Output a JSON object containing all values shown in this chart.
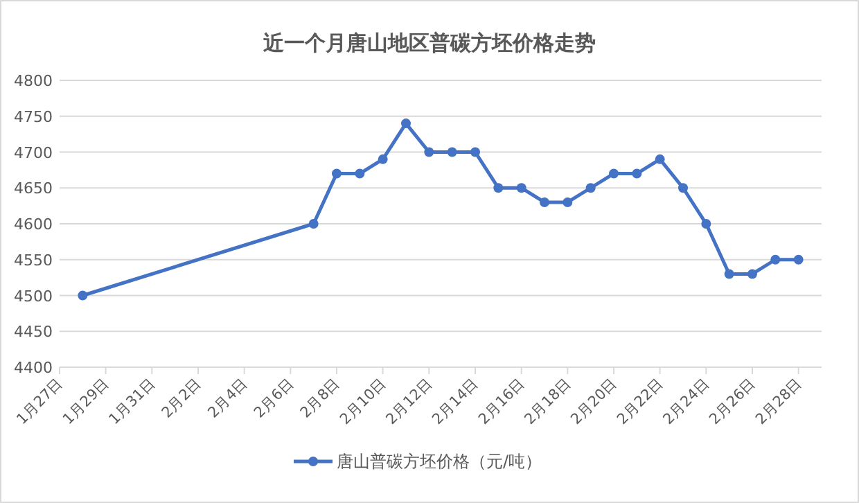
{
  "chart_data": {
    "type": "line",
    "title": "近一个月唐山地区普碳方坯价格走势",
    "x": [
      "--01-28",
      "--02-07",
      "--02-08",
      "--02-09",
      "--02-10",
      "--02-11",
      "--02-12",
      "--02-13",
      "--02-14",
      "--02-15",
      "--02-16",
      "--02-17",
      "--02-18",
      "--02-19",
      "--02-20",
      "--02-21",
      "--02-22",
      "--02-23",
      "--02-24",
      "--02-25",
      "--02-26",
      "--02-27",
      "--02-28"
    ],
    "series": [
      {
        "name": "唐山普碳方坯价格（元/吨）",
        "color": "#4472c4",
        "values": [
          4500,
          4600,
          4670,
          4670,
          4690,
          4740,
          4700,
          4700,
          4700,
          4650,
          4650,
          4630,
          4630,
          4650,
          4670,
          4670,
          4690,
          4650,
          4600,
          4530,
          4530,
          4550,
          4550
        ]
      }
    ],
    "xlim": [
      "--01-27",
      "--03-01"
    ],
    "xticks": [
      {
        "value": "--01-27",
        "label": "1月27日"
      },
      {
        "value": "--01-29",
        "label": "1月29日"
      },
      {
        "value": "--01-31",
        "label": "1月31日"
      },
      {
        "value": "--02-02",
        "label": "2月2日"
      },
      {
        "value": "--02-04",
        "label": "2月4日"
      },
      {
        "value": "--02-06",
        "label": "2月6日"
      },
      {
        "value": "--02-08",
        "label": "2月8日"
      },
      {
        "value": "--02-10",
        "label": "2月10日"
      },
      {
        "value": "--02-12",
        "label": "2月12日"
      },
      {
        "value": "--02-14",
        "label": "2月14日"
      },
      {
        "value": "--02-16",
        "label": "2月16日"
      },
      {
        "value": "--02-18",
        "label": "2月18日"
      },
      {
        "value": "--02-20",
        "label": "2月20日"
      },
      {
        "value": "--02-22",
        "label": "2月22日"
      },
      {
        "value": "--02-24",
        "label": "2月24日"
      },
      {
        "value": "--02-26",
        "label": "2月26日"
      },
      {
        "value": "--02-28",
        "label": "2月28日"
      }
    ],
    "ylim": [
      4400,
      4800
    ],
    "yticks": [
      4400,
      4450,
      4500,
      4550,
      4600,
      4650,
      4700,
      4750,
      4800
    ],
    "grid": "y",
    "legend": "bottom",
    "marker": "circle",
    "line_style": "solid"
  }
}
